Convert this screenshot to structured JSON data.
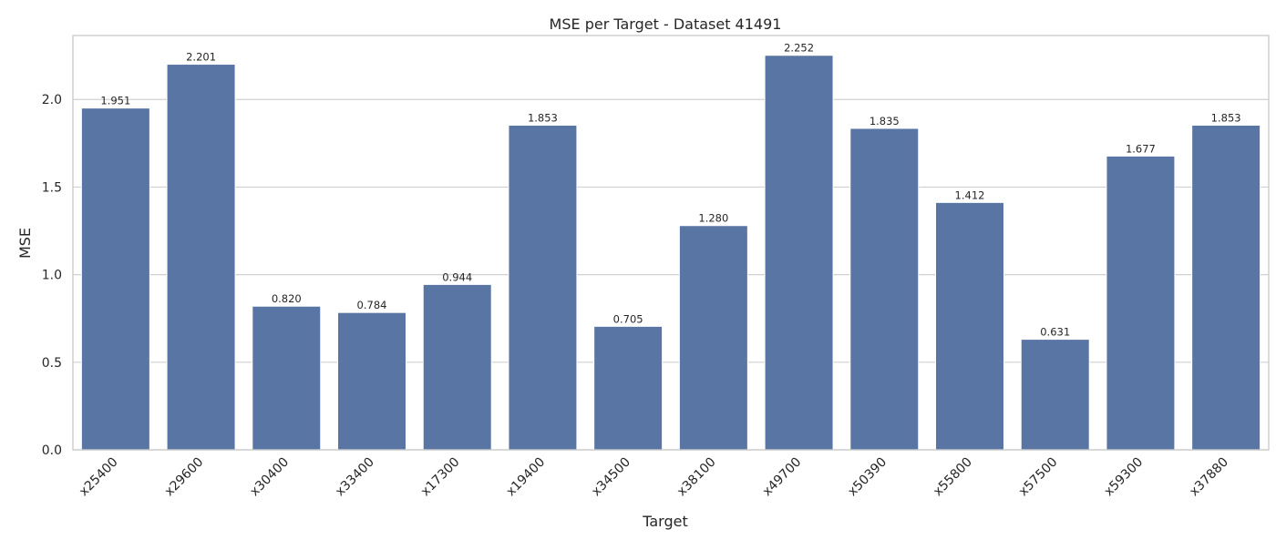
{
  "chart_data": {
    "type": "bar",
    "title": "MSE per Target - Dataset 41491",
    "xlabel": "Target",
    "ylabel": "MSE",
    "categories": [
      "x25400",
      "x29600",
      "x30400",
      "x33400",
      "x17300",
      "x19400",
      "x34500",
      "x38100",
      "x49700",
      "x50390",
      "x55800",
      "x57500",
      "x59300",
      "x37880"
    ],
    "values": [
      1.951,
      2.201,
      0.82,
      0.784,
      0.944,
      1.853,
      0.705,
      1.28,
      2.252,
      1.835,
      1.412,
      0.631,
      1.677,
      1.853
    ],
    "value_labels": [
      "1.951",
      "2.201",
      "0.820",
      "0.784",
      "0.944",
      "1.853",
      "0.705",
      "1.280",
      "2.252",
      "1.835",
      "1.412",
      "0.631",
      "1.677",
      "1.853"
    ],
    "ylim": [
      0,
      2.365
    ],
    "yticks": [
      0.0,
      0.5,
      1.0,
      1.5,
      2.0
    ],
    "ytick_labels": [
      "0.0",
      "0.5",
      "1.0",
      "1.5",
      "2.0"
    ],
    "grid": "horizontal",
    "bar_color": "#5975a4",
    "xtick_rotation": "45"
  }
}
